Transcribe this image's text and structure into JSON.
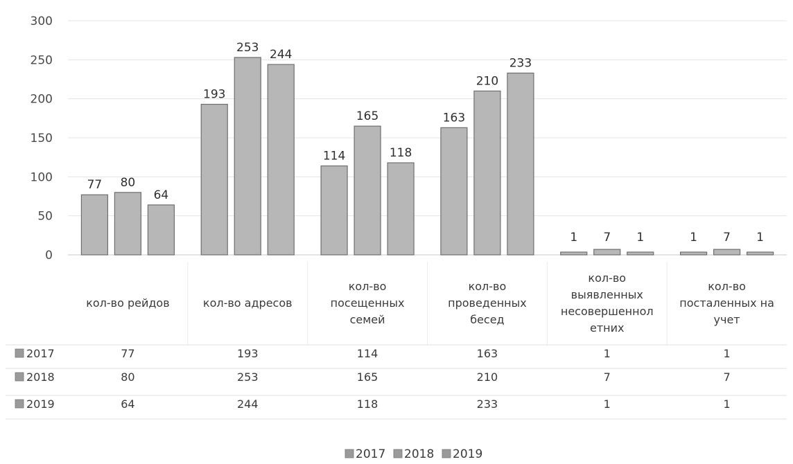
{
  "chart_data": {
    "type": "bar",
    "categories": [
      "кол-во рейдов",
      "кол-во адресов",
      "кол-во посещенных семей",
      "кол-во проведенных бесед",
      "кол-во выявленных несовершеннолетних",
      "кол-во посталенных на учет"
    ],
    "category_lines": [
      [
        "кол-во рейдов"
      ],
      [
        "кол-во адресов"
      ],
      [
        "кол-во",
        "посещенных",
        "семей"
      ],
      [
        "кол-во",
        "проведенных",
        "бесед"
      ],
      [
        "кол-во",
        "выявленных",
        "несовершеннол",
        "етних"
      ],
      [
        "кол-во",
        "посталенных на",
        "учет"
      ]
    ],
    "series": [
      {
        "name": "2017",
        "values": [
          77,
          193,
          114,
          163,
          1,
          1
        ]
      },
      {
        "name": "2018",
        "values": [
          80,
          253,
          165,
          210,
          7,
          7
        ]
      },
      {
        "name": "2019",
        "values": [
          64,
          244,
          118,
          233,
          1,
          1
        ]
      }
    ],
    "y_ticks": [
      "0",
      "50",
      "100",
      "150",
      "200",
      "250",
      "300"
    ],
    "ylim": [
      0,
      300
    ],
    "grid": true,
    "data_table": true,
    "legend": "bottom",
    "colors": {
      "bar_fill": "#b7b7b7",
      "bar_stroke": "#6e6e6e",
      "grid": "#e4e4e4",
      "legend_swatch": "#9a9a9a"
    }
  }
}
